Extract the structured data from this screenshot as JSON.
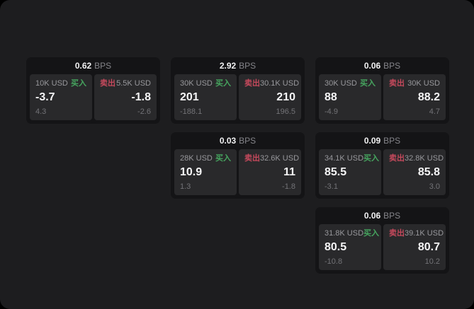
{
  "colors": {
    "background": "#1d1d1f",
    "card_background": "#141416",
    "tile_background": "#29292b",
    "buy_green": "#46a55f",
    "sell_red": "#c5495c"
  },
  "cards": [
    {
      "header": {
        "bps_value": "0.62",
        "bps_unit": "BPS"
      },
      "buy": {
        "amount": "10K USD",
        "side_label": "买入",
        "price": "-3.7",
        "change": "4.3"
      },
      "sell": {
        "side_label": "卖出",
        "amount": "5.5K USD",
        "price": "-1.8",
        "change": "-2.6"
      }
    },
    {
      "header": {
        "bps_value": "2.92",
        "bps_unit": "BPS"
      },
      "buy": {
        "amount": "30K USD",
        "side_label": "买入",
        "price": "201",
        "change": "-188.1"
      },
      "sell": {
        "side_label": "卖出",
        "amount": "30.1K USD",
        "price": "210",
        "change": "196.5"
      }
    },
    {
      "header": {
        "bps_value": "0.06",
        "bps_unit": "BPS"
      },
      "buy": {
        "amount": "30K USD",
        "side_label": "买入",
        "price": "88",
        "change": "-4.9"
      },
      "sell": {
        "side_label": "卖出",
        "amount": "30K USD",
        "price": "88.2",
        "change": "4.7"
      }
    },
    {
      "header": {
        "bps_value": "0.03",
        "bps_unit": "BPS"
      },
      "buy": {
        "amount": "28K USD",
        "side_label": "买入",
        "price": "10.9",
        "change": "1.3"
      },
      "sell": {
        "side_label": "卖出",
        "amount": "32.6K USD",
        "price": "11",
        "change": "-1.8"
      }
    },
    {
      "header": {
        "bps_value": "0.09",
        "bps_unit": "BPS"
      },
      "buy": {
        "amount": "34.1K USD",
        "side_label": "买入",
        "price": "85.5",
        "change": "-3.1"
      },
      "sell": {
        "side_label": "卖出",
        "amount": "32.8K USD",
        "price": "85.8",
        "change": "3.0"
      }
    },
    {
      "header": {
        "bps_value": "0.06",
        "bps_unit": "BPS"
      },
      "buy": {
        "amount": "31.8K USD",
        "side_label": "买入",
        "price": "80.5",
        "change": "-10.8"
      },
      "sell": {
        "side_label": "卖出",
        "amount": "39.1K USD",
        "price": "80.7",
        "change": "10.2"
      }
    }
  ]
}
